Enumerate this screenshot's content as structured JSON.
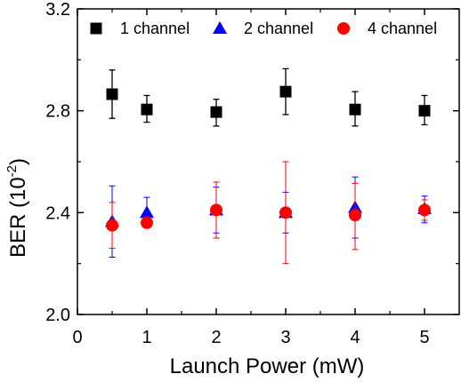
{
  "chart_data": {
    "type": "scatter",
    "xlabel": "Launch Power (mW)",
    "ylabel": {
      "base": "BER (10",
      "exponent": "-2",
      "close": ")"
    },
    "xlim": [
      0,
      5.5
    ],
    "ylim": [
      2.0,
      3.2
    ],
    "x_ticks": [
      "0",
      "1",
      "2",
      "3",
      "4",
      "5"
    ],
    "y_ticks": [
      "2.0",
      "2.4",
      "2.8",
      "3.2"
    ],
    "legend_position": "top",
    "series": [
      {
        "name": "1 channel",
        "marker": "square",
        "color": "#000000",
        "points": [
          {
            "x": 0.5,
            "y": 2.865,
            "err_low": 2.77,
            "err_high": 2.96
          },
          {
            "x": 1,
            "y": 2.805,
            "err_low": 2.755,
            "err_high": 2.86
          },
          {
            "x": 2,
            "y": 2.795,
            "err_low": 2.74,
            "err_high": 2.845
          },
          {
            "x": 3,
            "y": 2.875,
            "err_low": 2.785,
            "err_high": 2.965
          },
          {
            "x": 4,
            "y": 2.805,
            "err_low": 2.74,
            "err_high": 2.875
          },
          {
            "x": 5,
            "y": 2.8,
            "err_low": 2.745,
            "err_high": 2.86
          }
        ]
      },
      {
        "name": "2 channel",
        "marker": "triangle",
        "color": "#0000ff",
        "points": [
          {
            "x": 0.5,
            "y": 2.365,
            "err_low": 2.225,
            "err_high": 2.505
          },
          {
            "x": 1,
            "y": 2.4,
            "err_low": 2.345,
            "err_high": 2.46
          },
          {
            "x": 2,
            "y": 2.41,
            "err_low": 2.32,
            "err_high": 2.5
          },
          {
            "x": 3,
            "y": 2.4,
            "err_low": 2.32,
            "err_high": 2.48
          },
          {
            "x": 4,
            "y": 2.42,
            "err_low": 2.3,
            "err_high": 2.54
          },
          {
            "x": 5,
            "y": 2.415,
            "err_low": 2.36,
            "err_high": 2.465
          }
        ]
      },
      {
        "name": "4 channel",
        "marker": "circle",
        "color": "#ff0000",
        "points": [
          {
            "x": 0.5,
            "y": 2.35,
            "err_low": 2.26,
            "err_high": 2.44
          },
          {
            "x": 1,
            "y": 2.36,
            "err_low": 2.34,
            "err_high": 2.38
          },
          {
            "x": 2,
            "y": 2.41,
            "err_low": 2.3,
            "err_high": 2.52
          },
          {
            "x": 3,
            "y": 2.4,
            "err_low": 2.2,
            "err_high": 2.6
          },
          {
            "x": 4,
            "y": 2.39,
            "err_low": 2.255,
            "err_high": 2.515
          },
          {
            "x": 5,
            "y": 2.41,
            "err_low": 2.37,
            "err_high": 2.45
          }
        ]
      }
    ]
  }
}
